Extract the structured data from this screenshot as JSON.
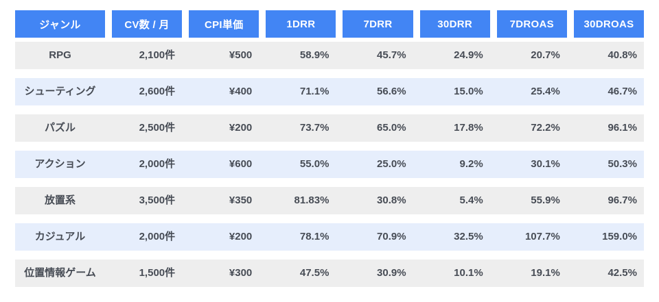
{
  "chart_data": {
    "type": "table",
    "title": "",
    "columns": [
      "ジャンル",
      "CV数 / 月",
      "CPI単価",
      "1DRR",
      "7DRR",
      "30DRR",
      "7DROAS",
      "30DROAS"
    ],
    "rows": [
      [
        "RPG",
        "2,100件",
        "¥500",
        "58.9%",
        "45.7%",
        "24.9%",
        "20.7%",
        "40.8%"
      ],
      [
        "シューティング",
        "2,600件",
        "¥400",
        "71.1%",
        "56.6%",
        "15.0%",
        "25.4%",
        "46.7%"
      ],
      [
        "パズル",
        "2,500件",
        "¥200",
        "73.7%",
        "65.0%",
        "17.8%",
        "72.2%",
        "96.1%"
      ],
      [
        "アクション",
        "2,000件",
        "¥600",
        "55.0%",
        "25.0%",
        "9.2%",
        "30.1%",
        "50.3%"
      ],
      [
        "放置系",
        "3,500件",
        "¥350",
        "81.83%",
        "30.8%",
        "5.4%",
        "55.9%",
        "96.7%"
      ],
      [
        "カジュアル",
        "2,000件",
        "¥200",
        "78.1%",
        "70.9%",
        "32.5%",
        "107.7%",
        "159.0%"
      ],
      [
        "位置情報ゲーム",
        "1,500件",
        "¥300",
        "47.5%",
        "30.9%",
        "10.1%",
        "19.1%",
        "42.5%"
      ]
    ],
    "layout_hints": {
      "row_striping": [
        "gray",
        "blue"
      ],
      "genre_column_align": "center",
      "value_columns_align": "right",
      "grid": "off"
    }
  },
  "colors": {
    "header_bg": "#4285F4",
    "header_text": "#FFFFFF",
    "row_gray": "#EEEEEE",
    "row_blue": "#E6EEFC",
    "body_text": "#474C55",
    "page_bg": "#FFFFFF"
  }
}
